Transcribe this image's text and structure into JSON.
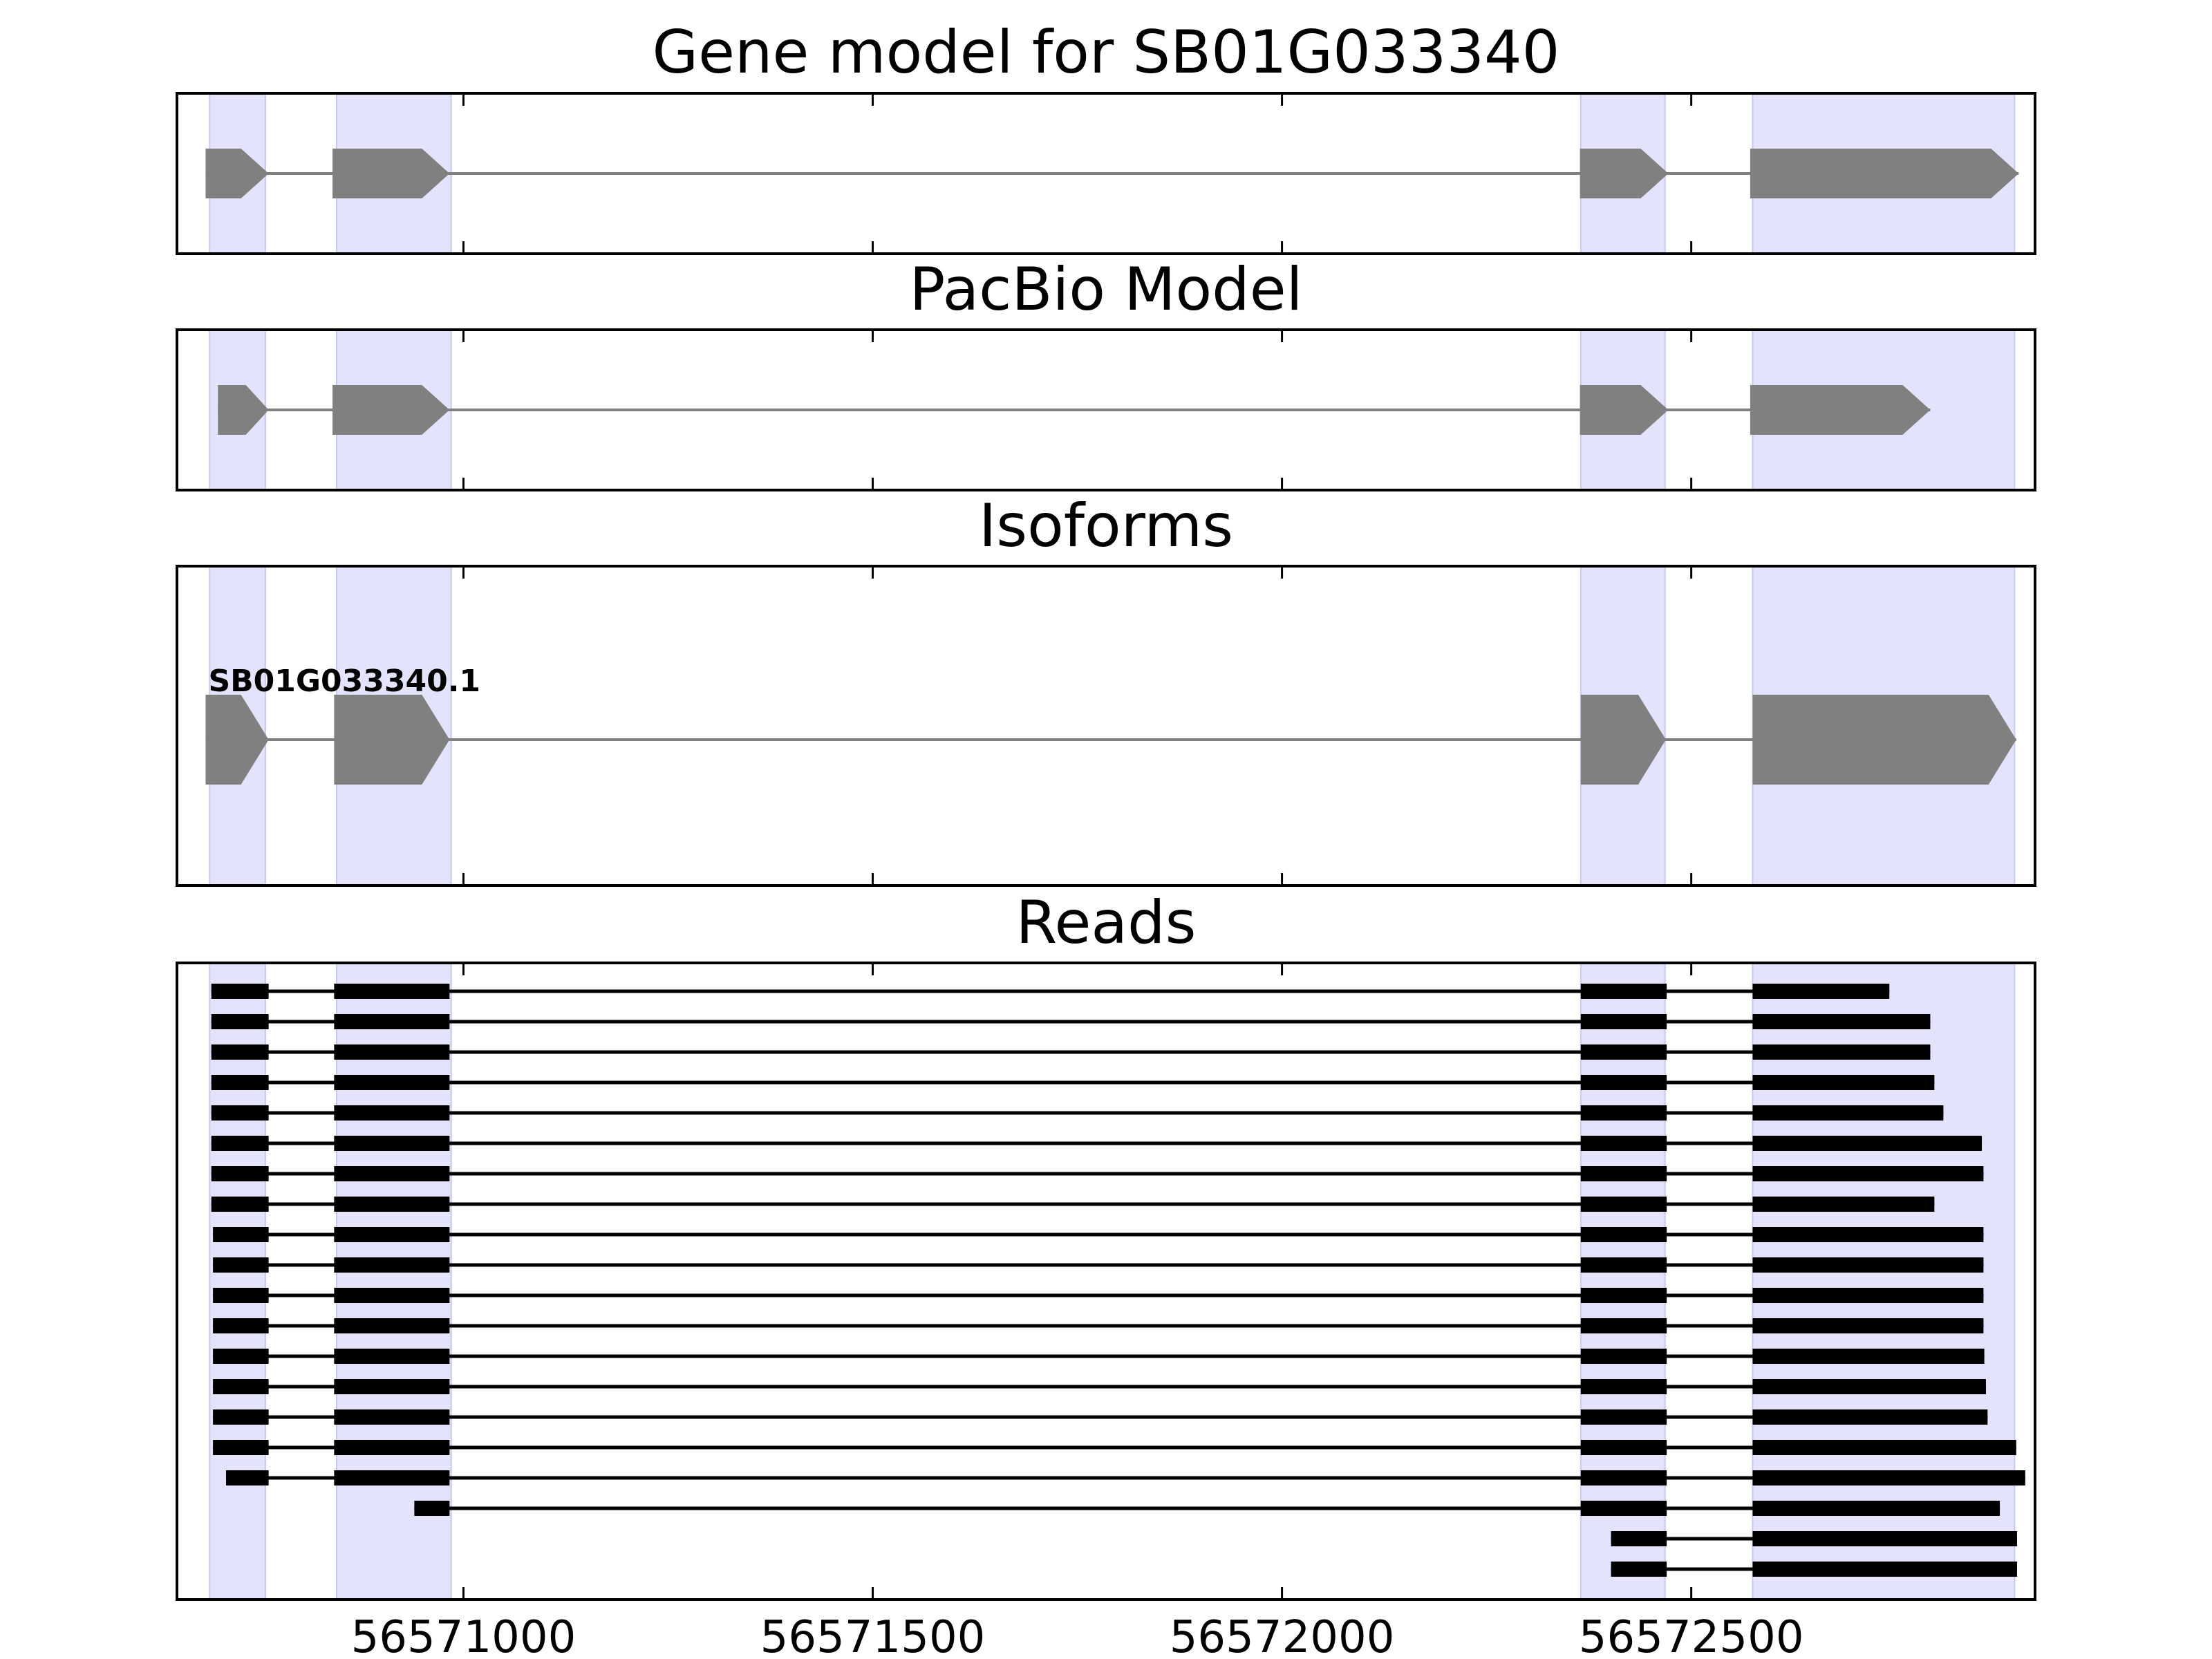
{
  "chart_data": {
    "type": "gene-model",
    "x_range": [
      56570650,
      56572920
    ],
    "x_ticks": [
      56571000,
      56571500,
      56572000,
      56572500
    ],
    "x_tick_labels": [
      "56571000",
      "56571500",
      "56572000",
      "56572500"
    ],
    "highlight_color": "#e3e3fb",
    "exon_color": "#808080",
    "read_color": "#000000",
    "highlight_regions": [
      [
        56570690,
        56570758
      ],
      [
        56570845,
        56570985
      ],
      [
        56572365,
        56572468
      ],
      [
        56572575,
        56572895
      ]
    ],
    "panels": [
      {
        "title": "Gene model for SB01G033340",
        "models": [
          {
            "label": "",
            "exons": [
              [
                56570685,
                56570762
              ],
              [
                56570840,
                56570983
              ],
              [
                56572364,
                56572472
              ],
              [
                56572572,
                56572900
              ]
            ]
          }
        ]
      },
      {
        "title": "PacBio Model",
        "models": [
          {
            "label": "",
            "exons": [
              [
                56570700,
                56570762
              ],
              [
                56570840,
                56570983
              ],
              [
                56572364,
                56572472
              ],
              [
                56572572,
                56572792
              ]
            ]
          }
        ]
      },
      {
        "title": "Isoforms",
        "models": [
          {
            "label": "SB01G033340.1",
            "exons": [
              [
                56570685,
                56570762
              ],
              [
                56570842,
                56570983
              ],
              [
                56572365,
                56572469
              ],
              [
                56572575,
                56572897
              ]
            ]
          }
        ]
      },
      {
        "title": "Reads",
        "reads": [
          [
            [
              56570692,
              56570762
            ],
            [
              56570842,
              56570983
            ],
            [
              56572365,
              56572470
            ],
            [
              56572575,
              56572742
            ]
          ],
          [
            [
              56570692,
              56570762
            ],
            [
              56570842,
              56570983
            ],
            [
              56572365,
              56572470
            ],
            [
              56572575,
              56572792
            ]
          ],
          [
            [
              56570692,
              56570762
            ],
            [
              56570842,
              56570983
            ],
            [
              56572365,
              56572470
            ],
            [
              56572575,
              56572792
            ]
          ],
          [
            [
              56570692,
              56570762
            ],
            [
              56570842,
              56570983
            ],
            [
              56572365,
              56572470
            ],
            [
              56572575,
              56572797
            ]
          ],
          [
            [
              56570692,
              56570762
            ],
            [
              56570842,
              56570983
            ],
            [
              56572365,
              56572470
            ],
            [
              56572575,
              56572808
            ]
          ],
          [
            [
              56570692,
              56570762
            ],
            [
              56570842,
              56570983
            ],
            [
              56572365,
              56572470
            ],
            [
              56572575,
              56572855
            ]
          ],
          [
            [
              56570692,
              56570762
            ],
            [
              56570842,
              56570983
            ],
            [
              56572365,
              56572470
            ],
            [
              56572575,
              56572857
            ]
          ],
          [
            [
              56570692,
              56570762
            ],
            [
              56570842,
              56570983
            ],
            [
              56572365,
              56572470
            ],
            [
              56572575,
              56572797
            ]
          ],
          [
            [
              56570694,
              56570762
            ],
            [
              56570842,
              56570983
            ],
            [
              56572365,
              56572470
            ],
            [
              56572575,
              56572857
            ]
          ],
          [
            [
              56570694,
              56570762
            ],
            [
              56570842,
              56570983
            ],
            [
              56572365,
              56572470
            ],
            [
              56572575,
              56572857
            ]
          ],
          [
            [
              56570694,
              56570762
            ],
            [
              56570842,
              56570983
            ],
            [
              56572365,
              56572470
            ],
            [
              56572575,
              56572857
            ]
          ],
          [
            [
              56570694,
              56570762
            ],
            [
              56570842,
              56570983
            ],
            [
              56572365,
              56572470
            ],
            [
              56572575,
              56572857
            ]
          ],
          [
            [
              56570694,
              56570762
            ],
            [
              56570842,
              56570983
            ],
            [
              56572365,
              56572470
            ],
            [
              56572575,
              56572858
            ]
          ],
          [
            [
              56570694,
              56570762
            ],
            [
              56570842,
              56570983
            ],
            [
              56572365,
              56572470
            ],
            [
              56572575,
              56572860
            ]
          ],
          [
            [
              56570694,
              56570762
            ],
            [
              56570842,
              56570983
            ],
            [
              56572365,
              56572470
            ],
            [
              56572575,
              56572862
            ]
          ],
          [
            [
              56570694,
              56570762
            ],
            [
              56570842,
              56570983
            ],
            [
              56572365,
              56572470
            ],
            [
              56572575,
              56572897
            ]
          ],
          [
            [
              56570710,
              56570762
            ],
            [
              56570842,
              56570983
            ],
            [
              56572365,
              56572470
            ],
            [
              56572575,
              56572908
            ]
          ],
          [
            [
              56570940,
              56570983
            ],
            [
              56572365,
              56572470
            ],
            [
              56572575,
              56572877
            ]
          ],
          [
            [
              56572402,
              56572470
            ],
            [
              56572575,
              56572898
            ]
          ],
          [
            [
              56572402,
              56572470
            ],
            [
              56572575,
              56572898
            ]
          ]
        ]
      }
    ]
  }
}
